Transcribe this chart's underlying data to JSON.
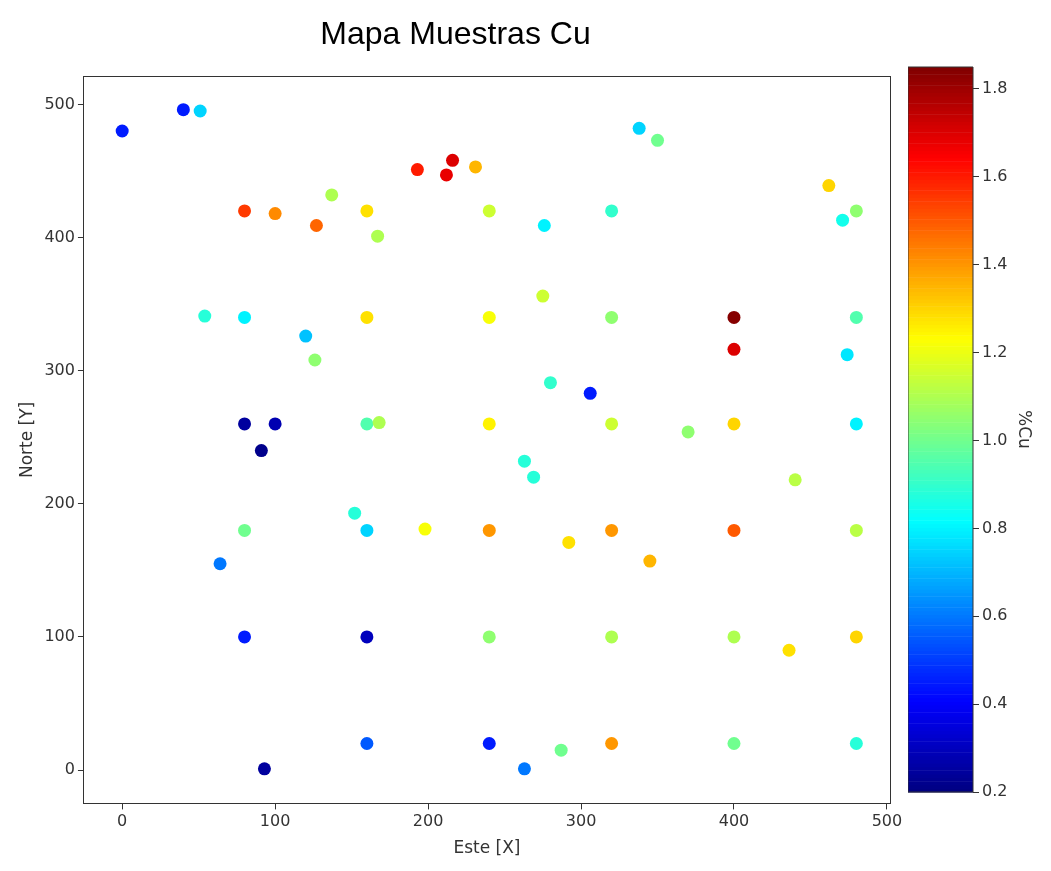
{
  "chart_data": {
    "type": "scatter",
    "title": "Mapa Muestras Cu",
    "xlabel": "Este [X]",
    "ylabel": "Norte [Y]",
    "clabel": "%Cu",
    "xlim": [
      -25,
      502
    ],
    "xticks": [
      0,
      100,
      200,
      300,
      400,
      500
    ],
    "ylim": [
      -25,
      521
    ],
    "yticks": [
      0,
      100,
      200,
      300,
      400,
      500
    ],
    "clim": [
      0.2,
      1.85
    ],
    "cticks": [
      0.2,
      0.4,
      0.6,
      0.8,
      {
        "value": 1,
        "label": "1.0"
      },
      1.2,
      1.4,
      1.6,
      1.8
    ],
    "grid": false,
    "marker": "circle",
    "legend": false,
    "x": [
      0,
      40,
      51,
      338,
      350,
      193,
      216,
      212,
      231,
      80,
      100,
      127,
      137,
      160,
      167,
      240,
      276,
      320,
      462,
      480,
      471,
      54,
      80,
      120,
      160,
      126,
      240,
      275,
      320,
      400,
      400,
      480,
      474,
      280,
      306,
      80,
      100,
      91,
      160,
      168,
      240,
      320,
      370,
      400,
      480,
      263,
      269,
      440,
      152,
      80,
      160,
      198,
      240,
      292,
      320,
      345,
      400,
      480,
      64,
      80,
      160,
      240,
      320,
      400,
      436,
      480,
      160,
      240,
      263,
      287,
      320,
      400,
      480,
      93
    ],
    "values": [
      480,
      496,
      495,
      482,
      473,
      451,
      458,
      447,
      453,
      420,
      418,
      409,
      432,
      420,
      401,
      420,
      409,
      420,
      439,
      420,
      413,
      341,
      340,
      326,
      340,
      308,
      340,
      356,
      340,
      340,
      316,
      340,
      312,
      291,
      283,
      260,
      260,
      240,
      260,
      261,
      260,
      260,
      254,
      260,
      260,
      232,
      220,
      218,
      193,
      180,
      180,
      181,
      180,
      171,
      180,
      157,
      180,
      180,
      155,
      100,
      100,
      100,
      100,
      100,
      90,
      100,
      20,
      20,
      1,
      15,
      20,
      20,
      20,
      1
    ],
    "cvalues": [
      0.45,
      0.45,
      0.75,
      0.75,
      1.0,
      1.6,
      1.7,
      1.68,
      1.35,
      1.55,
      1.42,
      1.48,
      1.1,
      1.28,
      1.1,
      1.15,
      0.8,
      0.9,
      1.3,
      1.05,
      0.85,
      0.88,
      0.8,
      0.72,
      1.28,
      1.05,
      1.22,
      1.15,
      1.05,
      1.84,
      1.7,
      0.95,
      0.78,
      0.9,
      0.45,
      0.25,
      0.28,
      0.22,
      0.95,
      1.1,
      1.25,
      1.15,
      1.05,
      1.3,
      0.8,
      0.88,
      0.88,
      1.12,
      0.88,
      1.0,
      0.75,
      1.22,
      1.4,
      1.28,
      1.4,
      1.35,
      1.5,
      1.12,
      0.6,
      0.45,
      0.3,
      1.05,
      1.1,
      1.1,
      1.28,
      1.3,
      0.55,
      0.45,
      0.6,
      1.0,
      1.4,
      1.0,
      0.88,
      0.25
    ]
  }
}
